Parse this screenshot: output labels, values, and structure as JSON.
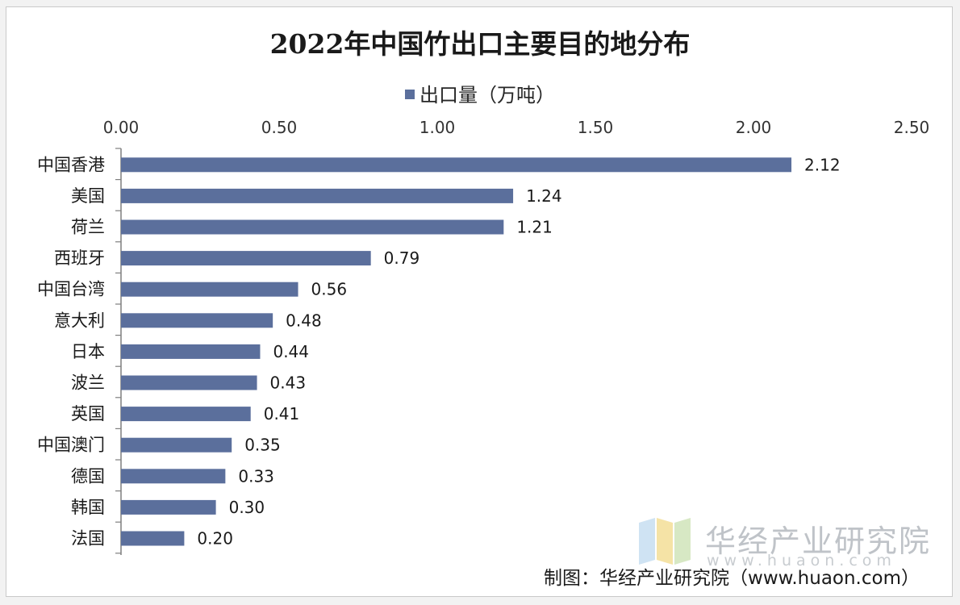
{
  "chart_data": {
    "type": "bar",
    "orientation": "horizontal",
    "title": "2022年中国竹出口主要目的地分布",
    "series": [
      {
        "name": "出口量（万吨）",
        "values": [
          2.12,
          1.24,
          1.21,
          0.79,
          0.56,
          0.48,
          0.44,
          0.43,
          0.41,
          0.35,
          0.33,
          0.3,
          0.2
        ]
      }
    ],
    "categories": [
      "中国香港",
      "美国",
      "荷兰",
      "西班牙",
      "中国台湾",
      "意大利",
      "日本",
      "波兰",
      "英国",
      "中国澳门",
      "德国",
      "韩国",
      "法国"
    ],
    "data_labels": [
      "2.12",
      "1.24",
      "1.21",
      "0.79",
      "0.56",
      "0.48",
      "0.44",
      "0.43",
      "0.41",
      "0.35",
      "0.33",
      "0.30",
      "0.20"
    ],
    "xlim": [
      0,
      2.5
    ],
    "x_ticks": [
      0,
      0.5,
      1.0,
      1.5,
      2.0,
      2.5
    ],
    "x_tick_labels": [
      "0.00",
      "0.50",
      "1.00",
      "1.50",
      "2.00",
      "2.50"
    ],
    "x_axis_position": "top",
    "legend_position": "top",
    "grid": false,
    "bar_color": "#5b6f9c"
  },
  "legend": {
    "label": "出口量（万吨）"
  },
  "watermark": {
    "brand": "华经产业研究院",
    "url": "www.huaon.com"
  },
  "source": "制图：华经产业研究院（www.huaon.com）"
}
